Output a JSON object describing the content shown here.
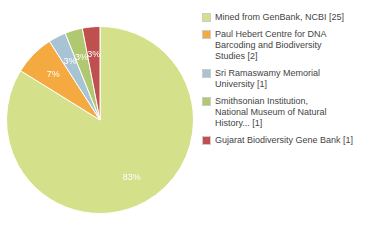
{
  "chart_data": {
    "type": "pie",
    "categories": [
      "Mined from GenBank, NCBI [25]",
      "Paul Hebert Centre for DNA\nBarcoding and Biodiversity\nStudies [2]",
      "Sri Ramaswamy Memorial\nUniversity [1]",
      "Smithsonian Institution,\nNational Museum of Natural\nHistory... [1]",
      "Gujarat Biodiversity Gene Bank [1]"
    ],
    "values": [
      83,
      7,
      3,
      3,
      3
    ],
    "value_labels": [
      "83%",
      "7%",
      "3%",
      "3%",
      "3%"
    ],
    "colors": [
      "#d4e08a",
      "#f4a941",
      "#a8c4d4",
      "#b0c870",
      "#c0504d"
    ],
    "data_labels": true,
    "legend": "right"
  }
}
